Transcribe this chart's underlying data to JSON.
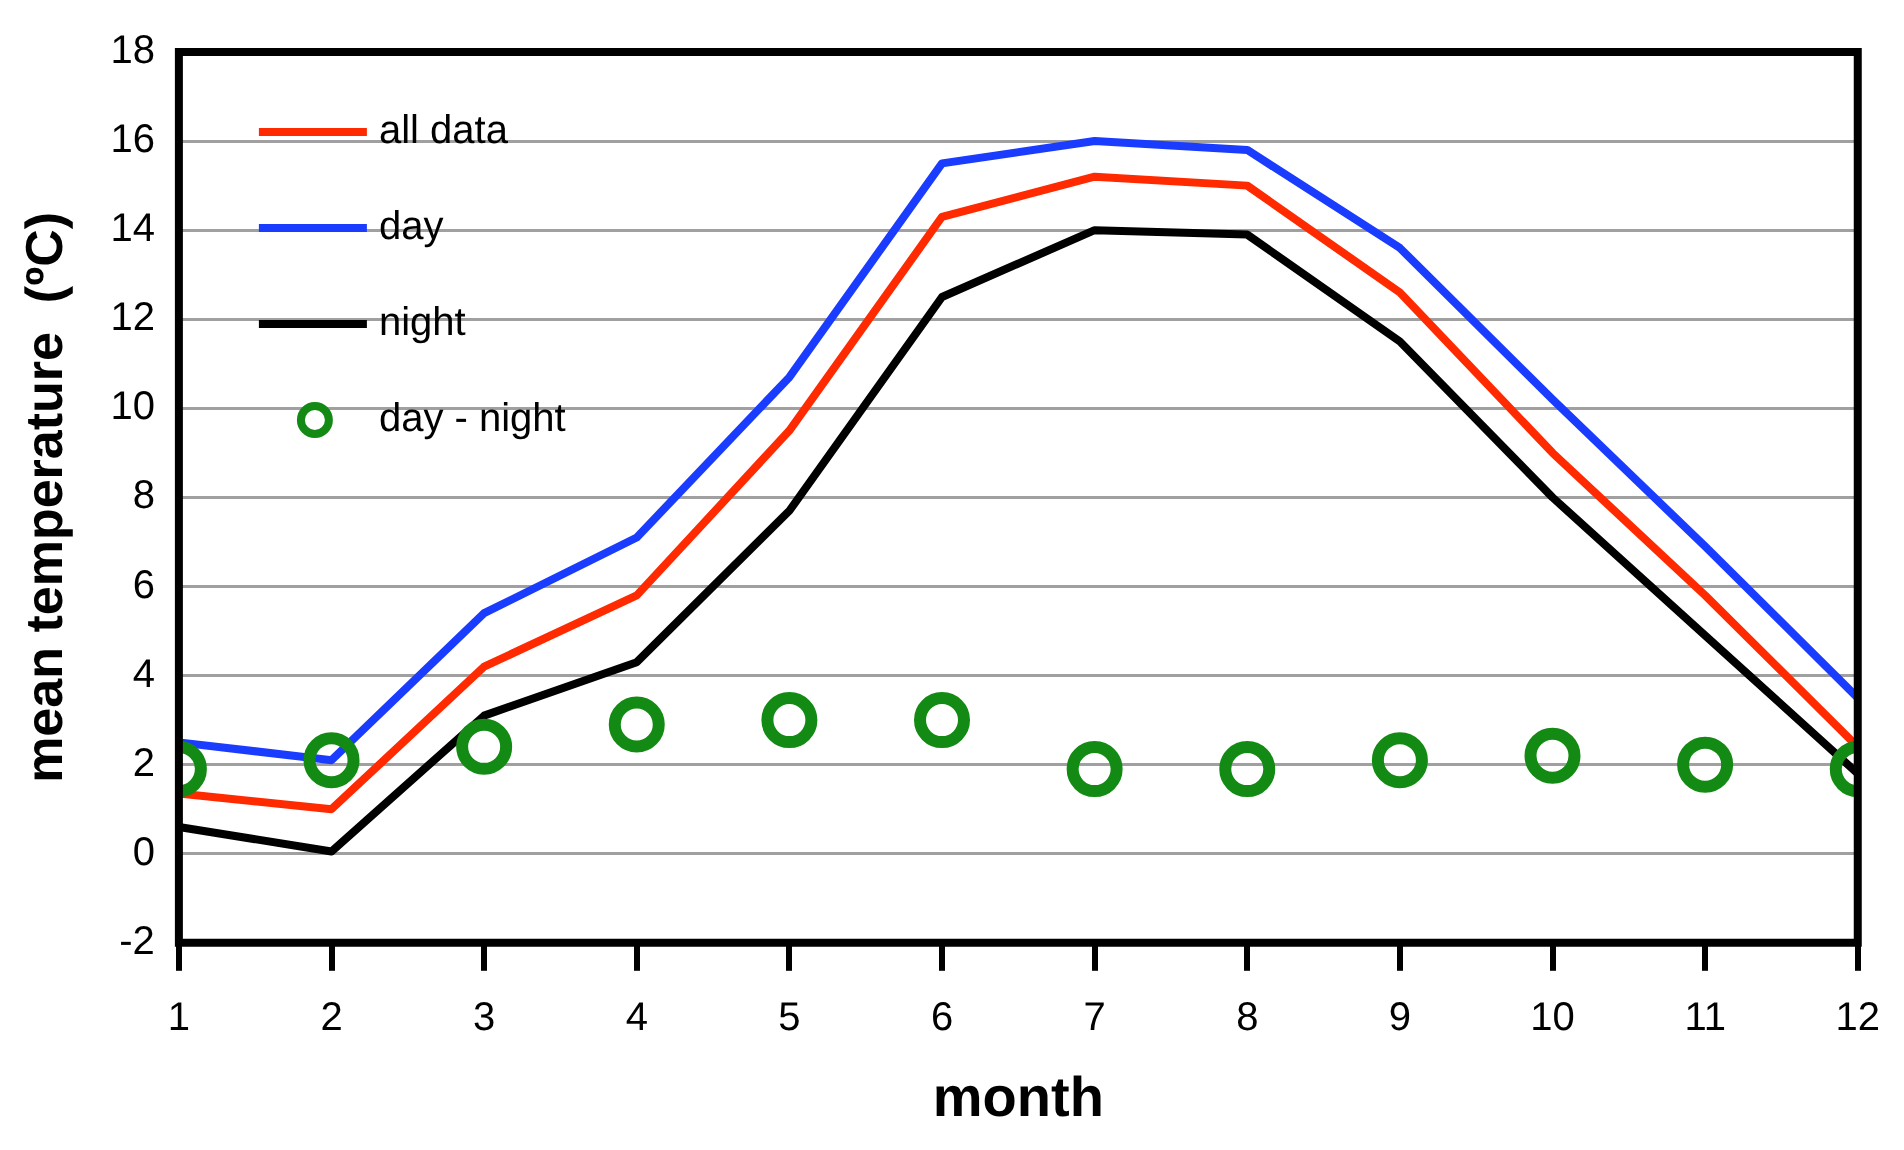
{
  "chart_data": {
    "type": "line",
    "xlabel": "month",
    "ylabel": "mean temperature  (ºC)",
    "x": [
      1,
      2,
      3,
      4,
      5,
      6,
      7,
      8,
      9,
      10,
      11,
      12
    ],
    "xlim": [
      1,
      12
    ],
    "xticks": [
      1,
      2,
      3,
      4,
      5,
      6,
      7,
      8,
      9,
      10,
      11,
      12
    ],
    "ylim": [
      -2,
      18
    ],
    "yticks": [
      -2,
      0,
      2,
      4,
      6,
      8,
      10,
      12,
      14,
      16,
      18
    ],
    "grid": "y",
    "legend": "top left",
    "series": [
      {
        "name": "all data",
        "color": "#ff2a00",
        "values": [
          1.35,
          1.0,
          4.2,
          5.8,
          9.5,
          14.3,
          15.2,
          15.0,
          12.6,
          9.0,
          5.8,
          2.4
        ]
      },
      {
        "name": "day",
        "color": "#1a3cff",
        "values": [
          2.5,
          2.1,
          5.4,
          7.1,
          10.7,
          15.5,
          16.0,
          15.8,
          13.6,
          10.2,
          6.9,
          3.5
        ]
      },
      {
        "name": "night",
        "color": "#000000",
        "values": [
          0.6,
          0.05,
          3.1,
          4.3,
          7.7,
          12.5,
          14.0,
          13.9,
          11.5,
          8.0,
          4.9,
          1.8
        ]
      },
      {
        "name": "day - night",
        "type": "scatter",
        "marker": "circle",
        "color": "#138a13",
        "values": [
          1.9,
          2.1,
          2.4,
          2.9,
          3.0,
          3.0,
          1.9,
          1.9,
          2.1,
          2.2,
          2.0,
          1.9
        ]
      }
    ]
  }
}
